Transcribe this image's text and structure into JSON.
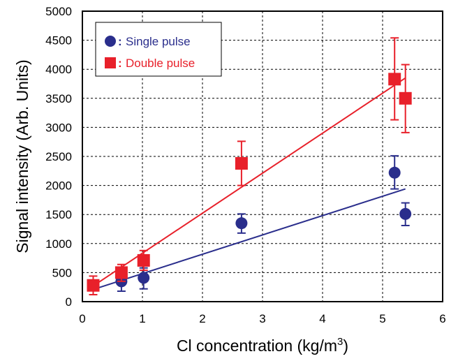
{
  "chart_data": {
    "type": "scatter",
    "title": "",
    "xlabel": "Cl concentration (kg/m",
    "xlabel_sup": "3",
    "xlabel_end": ")",
    "ylabel": "Signal intensity (Arb. Units)",
    "xlim": [
      0,
      6
    ],
    "ylim": [
      0,
      5000
    ],
    "x_ticks": [
      "0",
      "1",
      "2",
      "3",
      "4",
      "5",
      "6"
    ],
    "y_ticks": [
      "0",
      "500",
      "1000",
      "1500",
      "2000",
      "2500",
      "3000",
      "3500",
      "4000",
      "4500",
      "5000"
    ],
    "grid": true,
    "legend_position": "top-left",
    "series": [
      {
        "name": "Single pulse",
        "legend_prefix": ":",
        "color": "#2a2e8c",
        "marker": "circle",
        "points": [
          {
            "x": 0.65,
            "y": 350,
            "err_low": 180,
            "err_high": 450
          },
          {
            "x": 1.02,
            "y": 410,
            "err_low": 220,
            "err_high": 580
          },
          {
            "x": 2.65,
            "y": 1350,
            "err_low": 1180,
            "err_high": 1510
          },
          {
            "x": 5.2,
            "y": 2220,
            "err_low": 1940,
            "err_high": 2510
          },
          {
            "x": 5.38,
            "y": 1510,
            "err_low": 1310,
            "err_high": 1700
          }
        ],
        "fit": {
          "x": [
            0.18,
            5.38
          ],
          "y": [
            210,
            1940
          ]
        }
      },
      {
        "name": "Double pulse",
        "legend_prefix": ":",
        "color": "#e8202a",
        "marker": "square",
        "points": [
          {
            "x": 0.18,
            "y": 280,
            "err_low": 120,
            "err_high": 440
          },
          {
            "x": 0.65,
            "y": 500,
            "err_low": 350,
            "err_high": 640
          },
          {
            "x": 1.02,
            "y": 710,
            "err_low": 540,
            "err_high": 880
          },
          {
            "x": 2.65,
            "y": 2380,
            "err_low": 2000,
            "err_high": 2760
          },
          {
            "x": 5.2,
            "y": 3830,
            "err_low": 3130,
            "err_high": 4540
          },
          {
            "x": 5.38,
            "y": 3500,
            "err_low": 2910,
            "err_high": 4080
          }
        ],
        "fit": {
          "x": [
            0.18,
            5.38
          ],
          "y": [
            270,
            3850
          ]
        }
      }
    ]
  }
}
